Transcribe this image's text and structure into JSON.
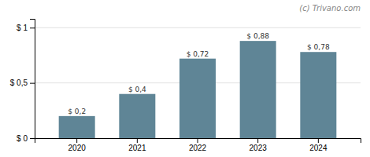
{
  "chart_data": {
    "type": "bar",
    "categories": [
      "2020",
      "2021",
      "2022",
      "2023",
      "2024"
    ],
    "values": [
      0.2,
      0.4,
      0.72,
      0.88,
      0.78
    ],
    "value_labels": [
      "$ 0,2",
      "$ 0,4",
      "$ 0,72",
      "$ 0,88",
      "$ 0,78"
    ],
    "data_labels": true,
    "color": "#5f8596",
    "ylim": [
      0,
      1.08
    ],
    "yticks": [
      {
        "value": 0,
        "label": "$ 0"
      },
      {
        "value": 0.5,
        "label": "$ 0,5"
      },
      {
        "value": 1.0,
        "label": "$ 1"
      }
    ],
    "grid": true,
    "annotations": [
      "(c) Trivano.com"
    ]
  }
}
